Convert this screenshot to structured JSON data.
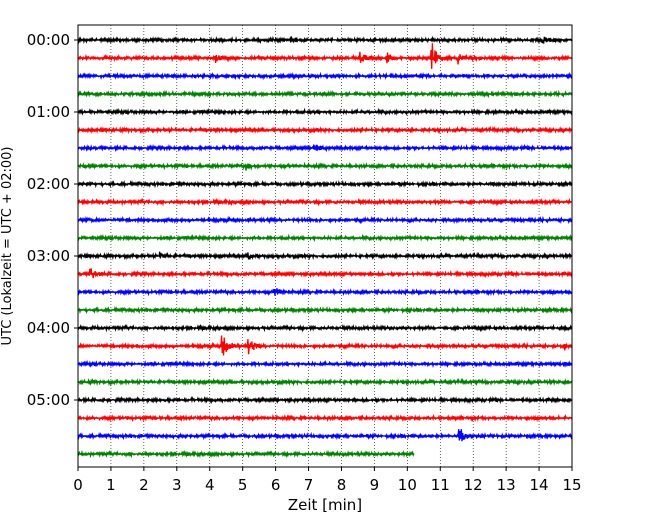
{
  "chart_data": {
    "type": "line",
    "title": "",
    "xlabel": "Zeit  [min]",
    "ylabel": "UTC (Lokalzeit = UTC + 02:00)",
    "xlim": [
      0,
      15
    ],
    "x_ticks": [
      0,
      1,
      2,
      3,
      4,
      5,
      6,
      7,
      8,
      9,
      10,
      11,
      12,
      13,
      14,
      15
    ],
    "x_tick_labels": [
      "0",
      "1",
      "2",
      "3",
      "4",
      "5",
      "6",
      "7",
      "8",
      "9",
      "10",
      "11",
      "12",
      "13",
      "14",
      "15"
    ],
    "y_tick_labels": [
      "00:00",
      "01:00",
      "02:00",
      "03:00",
      "04:00",
      "05:00"
    ],
    "y_tick_rows": [
      0,
      4,
      8,
      12,
      16,
      20
    ],
    "grid": "vertical-dotted",
    "trace_colors": [
      "#000000",
      "#ff0000",
      "#0000ff",
      "#008000"
    ],
    "row_interval_minutes": 15,
    "rows": [
      {
        "label": "00:00",
        "end_min": 15
      },
      {
        "label": "00:15",
        "end_min": 15
      },
      {
        "label": "00:30",
        "end_min": 15
      },
      {
        "label": "00:45",
        "end_min": 15
      },
      {
        "label": "01:00",
        "end_min": 15
      },
      {
        "label": "01:15",
        "end_min": 15
      },
      {
        "label": "01:30",
        "end_min": 15
      },
      {
        "label": "01:45",
        "end_min": 15
      },
      {
        "label": "02:00",
        "end_min": 15
      },
      {
        "label": "02:15",
        "end_min": 15
      },
      {
        "label": "02:30",
        "end_min": 15
      },
      {
        "label": "02:45",
        "end_min": 15
      },
      {
        "label": "03:00",
        "end_min": 15
      },
      {
        "label": "03:15",
        "end_min": 15
      },
      {
        "label": "03:30",
        "end_min": 15
      },
      {
        "label": "03:45",
        "end_min": 15
      },
      {
        "label": "04:00",
        "end_min": 15
      },
      {
        "label": "04:15",
        "end_min": 15
      },
      {
        "label": "04:30",
        "end_min": 15
      },
      {
        "label": "04:45",
        "end_min": 15
      },
      {
        "label": "05:00",
        "end_min": 15
      },
      {
        "label": "05:15",
        "end_min": 15
      },
      {
        "label": "05:30",
        "end_min": 15
      },
      {
        "label": "05:45",
        "end_min": 10.2
      }
    ],
    "events": [
      {
        "row": 0,
        "t": 6.5,
        "amp": 0.3
      },
      {
        "row": 0,
        "t": 14.1,
        "amp": 0.4
      },
      {
        "row": 1,
        "t": 4.2,
        "amp": 0.4
      },
      {
        "row": 1,
        "t": 8.6,
        "amp": 0.5
      },
      {
        "row": 1,
        "t": 9.4,
        "amp": 0.5
      },
      {
        "row": 1,
        "t": 10.75,
        "amp": 1.6
      },
      {
        "row": 1,
        "t": 11.55,
        "amp": 0.6
      },
      {
        "row": 6,
        "t": 7.2,
        "amp": 0.4
      },
      {
        "row": 7,
        "t": 5.1,
        "amp": 0.4
      },
      {
        "row": 12,
        "t": 2.5,
        "amp": 0.4
      },
      {
        "row": 12,
        "t": 5.2,
        "amp": 0.4
      },
      {
        "row": 13,
        "t": 0.4,
        "amp": 0.6
      },
      {
        "row": 14,
        "t": 6.0,
        "amp": 0.6
      },
      {
        "row": 17,
        "t": 4.4,
        "amp": 1.5
      },
      {
        "row": 17,
        "t": 5.2,
        "amp": 0.8
      },
      {
        "row": 17,
        "t": 14.8,
        "amp": 0.4
      },
      {
        "row": 22,
        "t": 11.6,
        "amp": 0.8
      }
    ]
  }
}
